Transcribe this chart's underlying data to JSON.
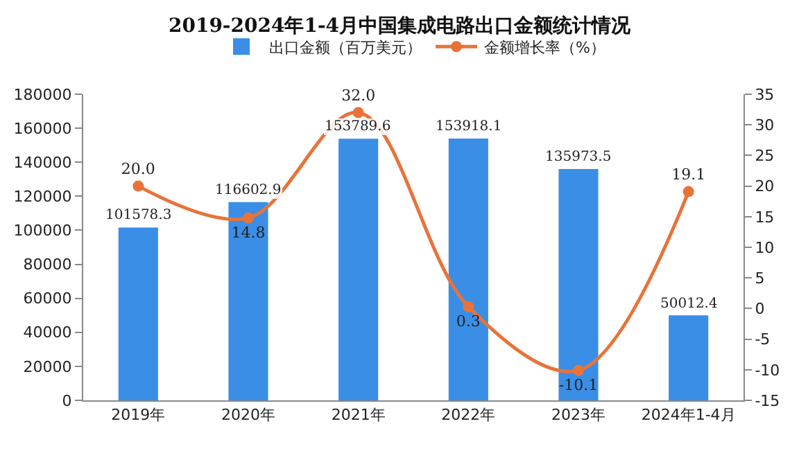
{
  "chart_data": {
    "type": "bar",
    "title": "2019-2024年1-4月中国集成电路出口金额统计情况",
    "categories": [
      "2019年",
      "2020年",
      "2021年",
      "2022年",
      "2023年",
      "2024年1-4月"
    ],
    "series": [
      {
        "name": "出口金额（百万美元）",
        "color": "#3a8ee6",
        "values": [
          101578.3,
          116602.9,
          153789.6,
          153918.1,
          135973.5,
          50012.4
        ],
        "value_labels": [
          "101578.3",
          "116602.9",
          "153789.6",
          "153918.1",
          "135973.5",
          "50012.4"
        ]
      },
      {
        "name": "金额增长率（%）",
        "type": "line",
        "axis": "y2",
        "color": "#e8733a",
        "values": [
          20.0,
          14.8,
          32.0,
          0.3,
          -10.1,
          19.1
        ],
        "value_labels": [
          "20.0",
          "14.8",
          "32.0",
          "0.3",
          "-10.1",
          "19.1"
        ]
      }
    ],
    "ylim": [
      0,
      180000
    ],
    "yticks": [
      0,
      20000,
      40000,
      60000,
      80000,
      100000,
      120000,
      140000,
      160000,
      180000
    ],
    "y2lim": [
      -15,
      35
    ],
    "y2ticks": [
      -15,
      -10,
      -5,
      0,
      5,
      10,
      15,
      20,
      25,
      30,
      35
    ],
    "legend": "top",
    "grid": false,
    "marker": "circle",
    "line_style": "solid"
  }
}
